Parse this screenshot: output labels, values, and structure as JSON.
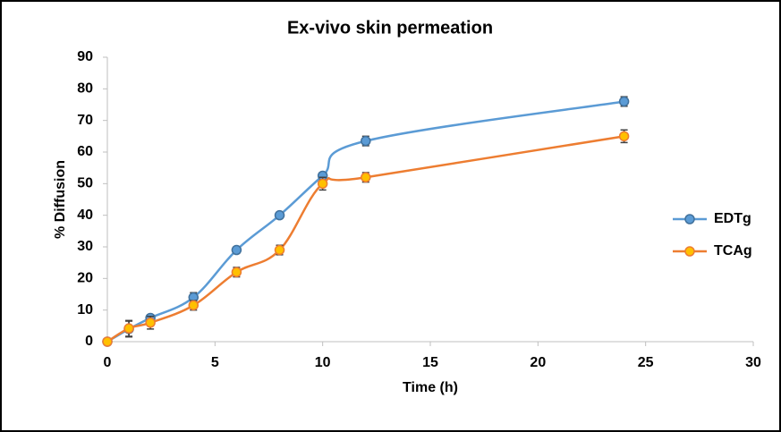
{
  "chart_data": {
    "type": "line",
    "title": "Ex-vivo skin permeation",
    "x_label": "Time (h)",
    "y_label": "% Diffusion",
    "x": [
      0,
      1,
      2,
      4,
      6,
      8,
      10,
      12,
      24
    ],
    "series": [
      {
        "name": "EDTg",
        "color": "#5b9bd5",
        "marker_color": "#5b9bd5",
        "marker_edge": "#41719c",
        "values": [
          0,
          4,
          7.5,
          14,
          29,
          40,
          52.5,
          63.5,
          76
        ],
        "errors": [
          0.5,
          2.5,
          1,
          1.5,
          1,
          1,
          1,
          1.5,
          1.5
        ]
      },
      {
        "name": "TCAg",
        "color": "#ed7d31",
        "marker_color": "#ffc000",
        "marker_edge": "#ed7d31",
        "values": [
          0,
          4.2,
          6,
          11.5,
          22,
          29,
          50,
          52,
          65
        ],
        "errors": [
          0.5,
          2.5,
          2,
          1.5,
          1.5,
          1.5,
          2,
          1.5,
          2
        ]
      }
    ],
    "xlim": [
      0,
      30
    ],
    "xticks": [
      0,
      5,
      10,
      15,
      20,
      25,
      30
    ],
    "ylim": [
      0,
      90
    ],
    "yticks": [
      0,
      10,
      20,
      30,
      40,
      50,
      60,
      70,
      80,
      90
    ],
    "grid": false,
    "legend": "right"
  }
}
